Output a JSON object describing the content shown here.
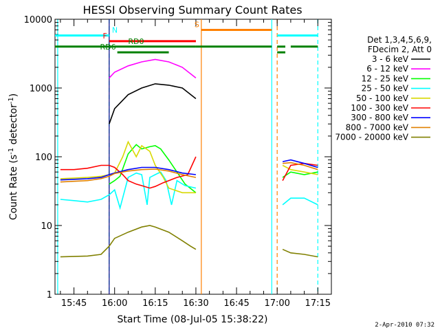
{
  "chart_data": {
    "type": "line",
    "title": "HESSI Observing Summary Count Rates",
    "xlabel": "Start Time (08-Jul-05 15:38:22)",
    "ylabel": "Count Rate (s⁻¹ detector⁻¹)",
    "yscale": "log",
    "ylim": [
      1,
      10000
    ],
    "xlim": [
      "15:38",
      "17:20"
    ],
    "x_ticks": [
      "15:45",
      "16:00",
      "16:15",
      "16:30",
      "16:45",
      "17:00",
      "17:15"
    ],
    "y_ticks": [
      "1",
      "10",
      "100",
      "1000",
      "10000"
    ],
    "legend_header": [
      "Det 1,3,4,5,6,9,",
      "FDecim 2, Att 0"
    ],
    "series": [
      {
        "name": "3 - 6 keV",
        "color": "#000000",
        "points": [
          [
            "15:58",
            300
          ],
          [
            "16:00",
            500
          ],
          [
            "16:05",
            800
          ],
          [
            "16:10",
            1000
          ],
          [
            "16:15",
            1150
          ],
          [
            "16:20",
            1100
          ],
          [
            "16:25",
            1000
          ],
          [
            "16:30",
            700
          ]
        ]
      },
      {
        "name": "6 - 12 keV",
        "color": "#ff00ff",
        "points": [
          [
            "15:58",
            1400
          ],
          [
            "16:00",
            1700
          ],
          [
            "16:05",
            2100
          ],
          [
            "16:10",
            2400
          ],
          [
            "16:15",
            2600
          ],
          [
            "16:20",
            2400
          ],
          [
            "16:25",
            2000
          ],
          [
            "16:30",
            1400
          ]
        ]
      },
      {
        "name": "12 - 25 keV",
        "color": "#00ff00",
        "points": [
          [
            "15:58",
            40
          ],
          [
            "16:00",
            45
          ],
          [
            "16:02",
            52
          ],
          [
            "16:05",
            110
          ],
          [
            "16:08",
            150
          ],
          [
            "16:10",
            130
          ],
          [
            "16:13",
            140
          ],
          [
            "16:15",
            145
          ],
          [
            "16:17",
            130
          ],
          [
            "16:20",
            90
          ],
          [
            "16:23",
            60
          ],
          [
            "16:26",
            40
          ],
          [
            "16:30",
            30
          ],
          [
            "17:02",
            50
          ],
          [
            "17:05",
            60
          ],
          [
            "17:10",
            55
          ],
          [
            "17:15",
            60
          ]
        ]
      },
      {
        "name": "25 - 50 keV",
        "color": "#00ffff",
        "points": [
          [
            "15:40",
            24
          ],
          [
            "15:45",
            23
          ],
          [
            "15:50",
            22
          ],
          [
            "15:55",
            24
          ],
          [
            "15:58",
            28
          ],
          [
            "16:00",
            33
          ],
          [
            "16:02",
            18
          ],
          [
            "16:05",
            50
          ],
          [
            "16:08",
            58
          ],
          [
            "16:10",
            55
          ],
          [
            "16:12",
            20
          ],
          [
            "16:13",
            50
          ],
          [
            "16:15",
            55
          ],
          [
            "16:17",
            60
          ],
          [
            "16:19",
            45
          ],
          [
            "16:21",
            20
          ],
          [
            "16:23",
            45
          ],
          [
            "16:26",
            38
          ],
          [
            "16:30",
            35
          ],
          [
            "17:02",
            20
          ],
          [
            "17:05",
            25
          ],
          [
            "17:10",
            25
          ],
          [
            "17:15",
            20
          ]
        ]
      },
      {
        "name": "50 - 100 keV",
        "color": "#d8d800",
        "points": [
          [
            "15:40",
            48
          ],
          [
            "15:50",
            50
          ],
          [
            "15:55",
            52
          ],
          [
            "15:58",
            55
          ],
          [
            "16:00",
            58
          ],
          [
            "16:03",
            100
          ],
          [
            "16:05",
            165
          ],
          [
            "16:08",
            100
          ],
          [
            "16:10",
            145
          ],
          [
            "16:13",
            120
          ],
          [
            "16:15",
            75
          ],
          [
            "16:18",
            50
          ],
          [
            "16:20",
            35
          ],
          [
            "16:25",
            30
          ],
          [
            "16:30",
            30
          ],
          [
            "17:02",
            75
          ],
          [
            "17:05",
            65
          ],
          [
            "17:10",
            60
          ],
          [
            "17:15",
            55
          ]
        ]
      },
      {
        "name": "100 - 300 keV",
        "color": "#ff0000",
        "points": [
          [
            "15:40",
            65
          ],
          [
            "15:45",
            65
          ],
          [
            "15:50",
            68
          ],
          [
            "15:55",
            75
          ],
          [
            "15:58",
            75
          ],
          [
            "16:00",
            70
          ],
          [
            "16:03",
            55
          ],
          [
            "16:05",
            45
          ],
          [
            "16:08",
            40
          ],
          [
            "16:10",
            38
          ],
          [
            "16:13",
            35
          ],
          [
            "16:15",
            37
          ],
          [
            "16:18",
            42
          ],
          [
            "16:20",
            45
          ],
          [
            "16:23",
            50
          ],
          [
            "16:27",
            55
          ],
          [
            "16:30",
            100
          ],
          [
            "17:02",
            45
          ],
          [
            "17:05",
            75
          ],
          [
            "17:10",
            80
          ],
          [
            "17:15",
            75
          ]
        ]
      },
      {
        "name": "300 - 800 keV",
        "color": "#0000ff",
        "points": [
          [
            "15:40",
            46
          ],
          [
            "15:50",
            48
          ],
          [
            "15:55",
            50
          ],
          [
            "15:58",
            55
          ],
          [
            "16:00",
            58
          ],
          [
            "16:05",
            65
          ],
          [
            "16:10",
            70
          ],
          [
            "16:15",
            70
          ],
          [
            "16:20",
            65
          ],
          [
            "16:25",
            58
          ],
          [
            "16:30",
            55
          ],
          [
            "17:02",
            85
          ],
          [
            "17:05",
            90
          ],
          [
            "17:10",
            80
          ],
          [
            "17:15",
            70
          ]
        ]
      },
      {
        "name": "800 - 7000 keV",
        "color": "#e08000",
        "points": [
          [
            "15:40",
            43
          ],
          [
            "15:50",
            45
          ],
          [
            "15:55",
            48
          ],
          [
            "15:58",
            52
          ],
          [
            "16:00",
            57
          ],
          [
            "16:05",
            62
          ],
          [
            "16:10",
            65
          ],
          [
            "16:15",
            66
          ],
          [
            "16:20",
            62
          ],
          [
            "16:25",
            55
          ],
          [
            "16:30",
            50
          ],
          [
            "17:02",
            80
          ],
          [
            "17:05",
            82
          ],
          [
            "17:10",
            75
          ],
          [
            "17:15",
            65
          ]
        ]
      },
      {
        "name": "7000 - 20000 keV",
        "color": "#808000",
        "points": [
          [
            "15:40",
            3.5
          ],
          [
            "15:50",
            3.6
          ],
          [
            "15:55",
            3.8
          ],
          [
            "15:58",
            5
          ],
          [
            "16:00",
            6.5
          ],
          [
            "16:05",
            8
          ],
          [
            "16:10",
            9.5
          ],
          [
            "16:13",
            10
          ],
          [
            "16:15",
            9.5
          ],
          [
            "16:20",
            8
          ],
          [
            "16:25",
            6
          ],
          [
            "16:28",
            5
          ],
          [
            "16:30",
            4.5
          ],
          [
            "17:02",
            4.5
          ],
          [
            "17:05",
            4
          ],
          [
            "17:10",
            3.8
          ],
          [
            "17:15",
            3.5
          ]
        ]
      }
    ],
    "flag_bars": [
      {
        "label": "N",
        "color": "#00ffff",
        "level": 5800,
        "segments": [
          [
            "15:38",
            "15:58"
          ],
          [
            "17:00",
            "17:15"
          ]
        ]
      },
      {
        "label": "F",
        "color": "#ff0000",
        "level": 4800,
        "segments": [
          [
            "15:58",
            "16:30"
          ]
        ]
      },
      {
        "label": "S",
        "color": "#ff8000",
        "level": 7000,
        "segments": [
          [
            "16:32",
            "16:58"
          ]
        ]
      },
      {
        "label": "RD0",
        "color": "#008000",
        "level": 4000,
        "segments": [
          [
            "15:38",
            "16:30"
          ],
          [
            "16:30",
            "16:58"
          ],
          [
            "17:00",
            "17:03"
          ],
          [
            "17:05",
            "17:15"
          ]
        ]
      },
      {
        "label": "RD6",
        "color": "#008000",
        "level": 3300,
        "segments": [
          [
            "16:01",
            "16:20"
          ],
          [
            "17:00",
            "17:03"
          ]
        ]
      }
    ],
    "vlines": [
      {
        "time": "15:39",
        "color": "#00ffff",
        "style": "solid"
      },
      {
        "time": "15:58",
        "color": "#00ffff",
        "style": "dashed"
      },
      {
        "time": "15:58",
        "color": "#000080",
        "style": "solid"
      },
      {
        "time": "16:32",
        "color": "#ff8000",
        "style": "solid"
      },
      {
        "time": "16:58",
        "color": "#00ffff",
        "style": "solid"
      },
      {
        "time": "17:00",
        "color": "#ff8000",
        "style": "dashed"
      },
      {
        "time": "17:15",
        "color": "#00ffff",
        "style": "dashed"
      }
    ],
    "grid": false,
    "legend_position": "right"
  },
  "footer": {
    "timestamp": "2-Apr-2010 07:32"
  }
}
